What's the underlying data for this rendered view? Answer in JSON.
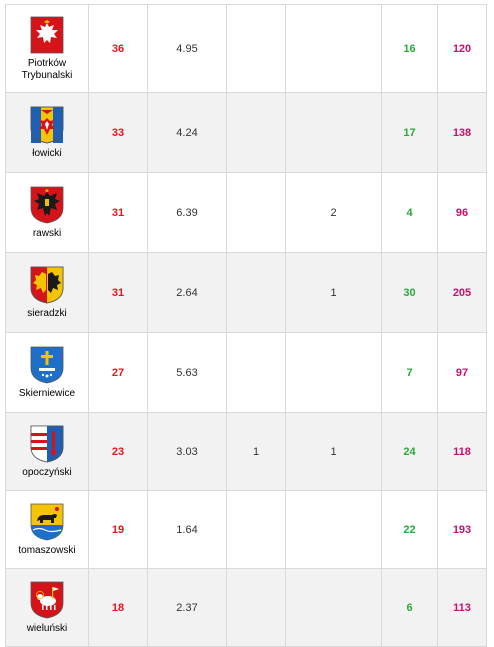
{
  "rows": [
    {
      "name": "Piotrków Trybunalski",
      "crest": "white-eagle-on-red-crest-icon",
      "col_a": "36",
      "col_b": "4.95",
      "col_c": "",
      "col_d": "",
      "col_e": "16",
      "col_f": "120"
    },
    {
      "name": "łowicki",
      "crest": "yellow-blue-eagle-crest-icon",
      "col_a": "33",
      "col_b": "4.24",
      "col_c": "",
      "col_d": "",
      "col_e": "17",
      "col_f": "138"
    },
    {
      "name": "rawski",
      "crest": "black-eagle-on-red-crest-icon",
      "col_a": "31",
      "col_b": "6.39",
      "col_c": "",
      "col_d": "2",
      "col_e": "4",
      "col_f": "96"
    },
    {
      "name": "sieradzki",
      "crest": "split-eagle-crest-icon",
      "col_a": "31",
      "col_b": "2.64",
      "col_c": "",
      "col_d": "1",
      "col_e": "30",
      "col_f": "205"
    },
    {
      "name": "Skierniewice",
      "crest": "blue-cross-crest-icon",
      "col_a": "27",
      "col_b": "5.63",
      "col_c": "",
      "col_d": "",
      "col_e": "7",
      "col_f": "97"
    },
    {
      "name": "opoczyński",
      "crest": "striped-shield-crest-icon",
      "col_a": "23",
      "col_b": "3.03",
      "col_c": "1",
      "col_d": "1",
      "col_e": "24",
      "col_f": "118"
    },
    {
      "name": "tomaszowski",
      "crest": "bear-on-yellow-crest-icon",
      "col_a": "19",
      "col_b": "1.64",
      "col_c": "",
      "col_d": "",
      "col_e": "22",
      "col_f": "193"
    },
    {
      "name": "wieluński",
      "crest": "lamb-on-red-crest-icon",
      "col_a": "18",
      "col_b": "2.37",
      "col_c": "",
      "col_d": "",
      "col_e": "6",
      "col_f": "113"
    }
  ],
  "colors": {
    "rank": "#e8131b",
    "green": "#2aa83a",
    "magenta": "#c8106c",
    "border": "#d9d9d9",
    "stripe": "#f2f2f2"
  }
}
